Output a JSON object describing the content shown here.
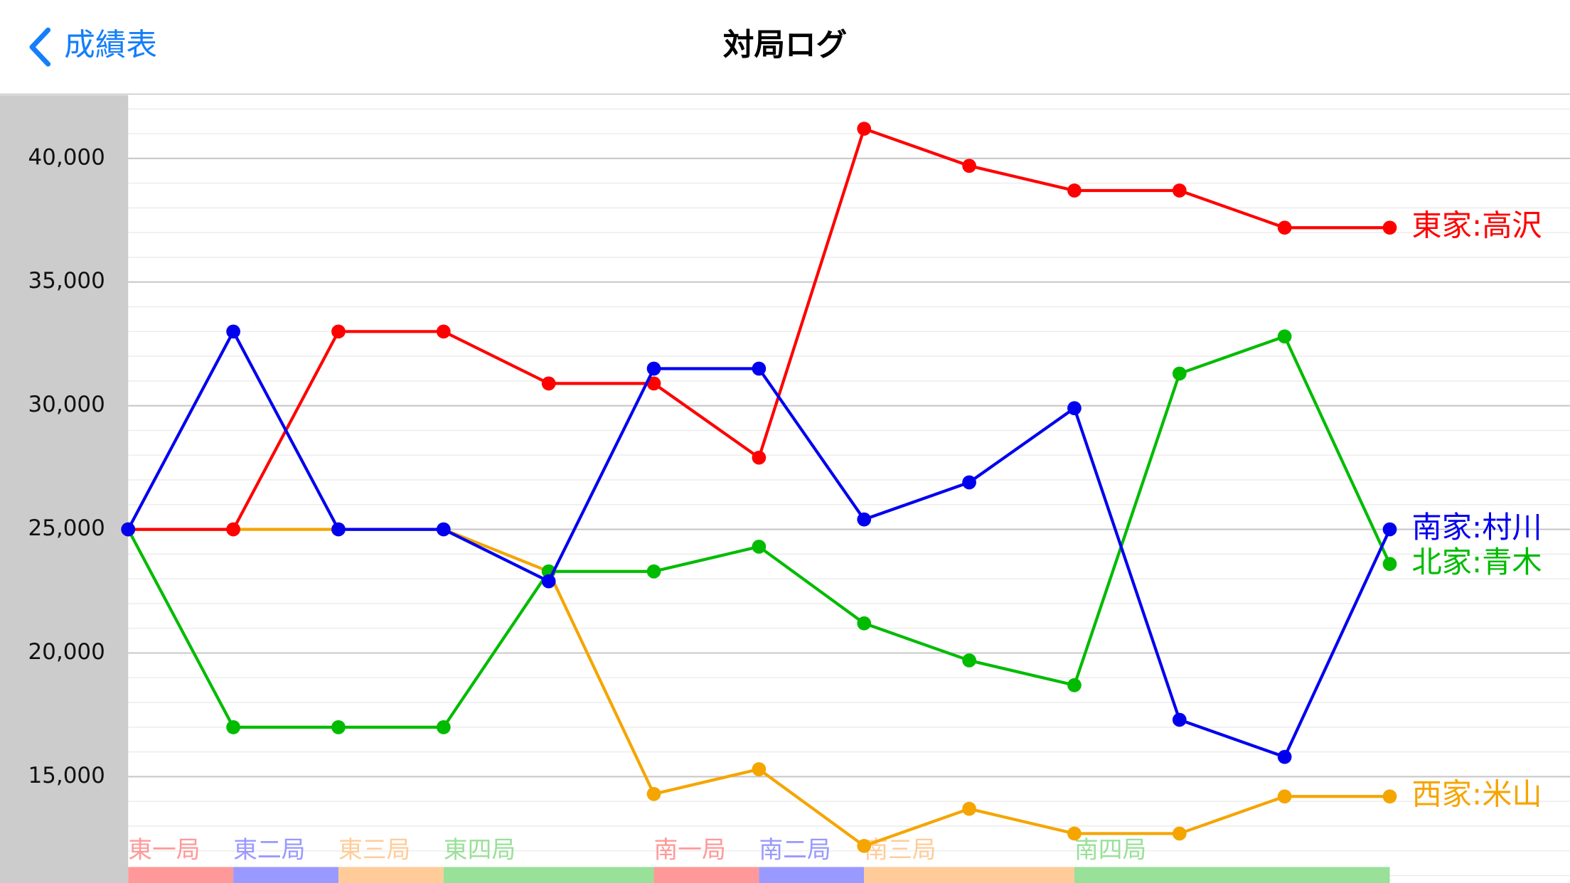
{
  "nav": {
    "back": "成績表",
    "title": "対局ログ"
  },
  "chart_data": {
    "type": "line",
    "categories": [
      null,
      null,
      null,
      null,
      null,
      null,
      null,
      null,
      null,
      null,
      null,
      null,
      null
    ],
    "series": [
      {
        "name": "西家:米山",
        "color": "#f5a500",
        "values": [
          25000,
          25000,
          25000,
          25000,
          23300,
          14300,
          15300,
          12200,
          13700,
          12700,
          12700,
          14200,
          14200
        ]
      },
      {
        "name": "北家:青木",
        "color": "#00bb00",
        "values": [
          25000,
          17000,
          17000,
          17000,
          23300,
          23300,
          24300,
          21200,
          19700,
          18700,
          31300,
          32800,
          23600
        ]
      },
      {
        "name": "東家:高沢",
        "color": "#ff0000",
        "values": [
          25000,
          25000,
          33000,
          33000,
          30900,
          30900,
          27900,
          41200,
          39700,
          38700,
          38700,
          37200,
          37200
        ]
      },
      {
        "name": "南家:村川",
        "color": "#0000ee",
        "values": [
          25000,
          33000,
          25000,
          25000,
          22900,
          31500,
          31500,
          25400,
          26900,
          29900,
          17300,
          15800,
          25000
        ]
      }
    ],
    "ylim": [
      10700,
      42600
    ],
    "yticks": [
      {
        "value": 15000,
        "label": "15,000"
      },
      {
        "value": 20000,
        "label": "20,000"
      },
      {
        "value": 25000,
        "label": "25,000"
      },
      {
        "value": 30000,
        "label": "30,000"
      },
      {
        "value": 35000,
        "label": "35,000"
      },
      {
        "value": 40000,
        "label": "40,000"
      }
    ],
    "grid": true,
    "minor_grid_step": 1000,
    "rounds": [
      {
        "label": "東一局",
        "start": 0,
        "end": 1,
        "color": "#ff9999"
      },
      {
        "label": "東二局",
        "start": 1,
        "end": 2,
        "color": "#9999ff"
      },
      {
        "label": "東三局",
        "start": 2,
        "end": 3,
        "color": "#ffcc99"
      },
      {
        "label": "東四局",
        "start": 3,
        "end": 5,
        "color": "#99e099"
      },
      {
        "label": "南一局",
        "start": 5,
        "end": 6,
        "color": "#ff9999"
      },
      {
        "label": "南二局",
        "start": 6,
        "end": 7,
        "color": "#9999ff"
      },
      {
        "label": "南三局",
        "start": 7,
        "end": 9,
        "color": "#ffcc99"
      },
      {
        "label": "南四局",
        "start": 9,
        "end": 12,
        "color": "#99e099"
      }
    ]
  }
}
